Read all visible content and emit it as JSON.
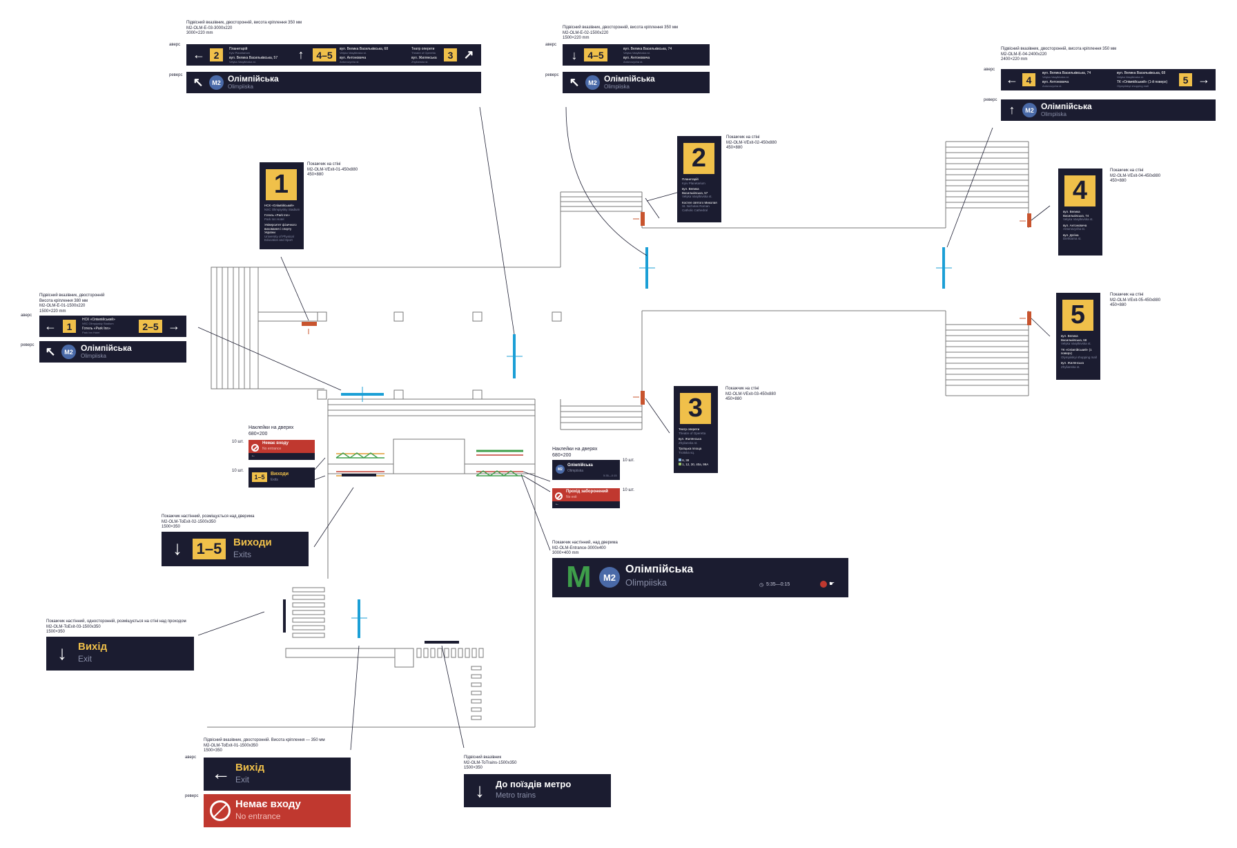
{
  "labels": {
    "avers": "аверс",
    "revers": "реверс"
  },
  "station": {
    "ua": "Олімпійська",
    "en": "Olimpiiska",
    "line": "M2"
  },
  "notes": {
    "e03": [
      "Підвісний вказівник, двосторонній, висота кріплення 350 мм",
      "M2-OLM-E-03-3000x220",
      "3000×220 mm"
    ],
    "e02": [
      "Підвісний вказівник, двосторонній, висота кріплення 350 мм",
      "M2-OLM-E-02-1500x220",
      "1500×220 mm"
    ],
    "e04": [
      "Підвісний вказівник, двосторонній, висота кріплення 350 мм",
      "M2-OLM-E-04-2400x220",
      "2400×220 mm"
    ],
    "e01": [
      "Підвісний вказівник, двосторонній",
      "Висота кріплення 380 мм",
      "M2-OLM-E-01-1500x220",
      "1500×220 mm"
    ],
    "v01": [
      "Покажчик на стіні",
      "M2-OLM-VExit-01-450x880",
      "450×880"
    ],
    "v02": [
      "Покажчик на стіні",
      "M2-OLM-VExit-02-450x880",
      "450×880"
    ],
    "v03": [
      "Покажчик на стіні",
      "M2-OLM-VExit-03-450x880",
      "450×880"
    ],
    "v04": [
      "Покажчик на стіні",
      "M2-OLM-VExit-04-450x880",
      "450×880"
    ],
    "v05": [
      "Покажчик на стіні",
      "M2-OLM-VExit-05-450x880",
      "450×880"
    ],
    "doors_left": [
      "Наклейки на дверях",
      "680×200"
    ],
    "doors_right": [
      "Наклейки на дверях",
      "680×200"
    ],
    "toexit02": [
      "Покажчик настінний, розміщується над дверима",
      "M2-OLM-ToExit-02-1500x350",
      "1500×350"
    ],
    "entrance": [
      "Покажчик настінний, над дверима",
      "M2-OLM-Entrance-3000x400",
      "3000×400 mm"
    ],
    "toexit03": [
      "Покажчик настінний, односторонній, розміщується на стіні над проходом",
      "M2-OLM-ToExit-03-1500x350",
      "1500×350"
    ],
    "toexit01": [
      "Підвісний вказівник, двосторонній. Висота кріплення — 350 мм",
      "M2-OLM-ToExit-01-1500x350",
      "1500×350"
    ],
    "totrains": [
      "Підвісний вказівник",
      "M2-OLM-ToTrains-1500x350",
      "1500×350"
    ]
  },
  "qty": {
    "a": "10 шт.",
    "b": "10 шт.",
    "c": "10 шт.",
    "d": "10 шт."
  },
  "sign_e03": {
    "a_num": "2",
    "a_l1": "Планетарій",
    "a_l1en": "Kyiv Planetarium",
    "a_l2": "вул. Велика Васильківська, 57",
    "a_l2en": "Velyka Vasylkivska st.",
    "b_num": "4–5",
    "b_l1": "вул. Велика Васильківська, 68",
    "b_l1en": "Velyka Vasylkivska st.",
    "b_l2": "вул. Антоновича",
    "b_l2en": "Antonovycha st.",
    "c_num": "3",
    "c_l1": "Театр оперети",
    "c_l1en": "Theatre of Operetta",
    "c_l2": "вул. Жилянська",
    "c_l2en": "Zhylianska st."
  },
  "sign_e02": {
    "num": "4–5",
    "l1": "вул. Велика Васильківська, 74",
    "l1en": "Velyka Vasylkivska st.",
    "l2": "вул. Антоновича",
    "l2en": "Antonovycha st."
  },
  "sign_e04": {
    "num1": "4",
    "l1": "вул. Велика Васильківська, 74",
    "l1en": "Velyka Vasylkivska st.",
    "l2": "вул. Антоновича",
    "l2en": "Antonovycha st.",
    "num2": "5",
    "r1": "вул. Велика Васильківська, 68",
    "r1en": "Velyka Vasylkivska st.",
    "r2": "ТК «Олімпійський» (1-й поверх)",
    "r2en": "Olympiiskyi shopping mall"
  },
  "sign_e01": {
    "num1": "1",
    "l1": "НСК «Олімпійський»",
    "l1en": "NSC Olimpiyskiy Stadium",
    "l2": "Готель «Park Inn»",
    "l2en": "Park Inn Hotel",
    "num2": "2–5"
  },
  "v1": {
    "num": "1",
    "items": [
      "НСК «Олімпійський»",
      "NSC Olimpiyskiy Stadium",
      "Готель «Park Inn»",
      "Park Inn Hotel",
      "Університет фізичного виховання і спорту України",
      "University of Physical Education and Sport"
    ]
  },
  "v2": {
    "num": "2",
    "items": [
      "Планетарій",
      "Kyiv Planetarium",
      "вул. Велика Васильківська, 57",
      "Velyka Vasylkivska st.",
      "Костел святого Миколая",
      "St. Nicholas Roman Catholic Cathedral"
    ]
  },
  "v3": {
    "num": "3",
    "items": [
      "Театр оперети",
      "Theatre of Operetta",
      "вул. Жилянська",
      "Zhylianska st.",
      "Троїцька площа",
      "Troitska sq."
    ],
    "bus1": "6, 38",
    "bus2": "1, 12, 30, 40а, 99А"
  },
  "v4": {
    "num": "4",
    "items": [
      "вул. Велика Васильківська, 74",
      "Velyka Vasylkivska st.",
      "вул. Антоновича",
      "Antonovycha st.",
      "вул. Дєгіна",
      "Diehtiarna st."
    ]
  },
  "v5": {
    "num": "5",
    "items": [
      "вул. Велика Васильківська, 68",
      "Velyka Vasylkivska st.",
      "ТК «Олімпійський» (1 поверх)",
      "Olympiiskyi shopping mall",
      "вул. Жилянська",
      "Zhylianska st."
    ]
  },
  "doors": {
    "no_entry_ua": "Немає входу",
    "no_entry_en": "No entrance",
    "exits_num": "1–5",
    "exits_ua": "Виходи",
    "exits_en": "Exits",
    "station_ua": "Олімпійська",
    "station_en": "Olimpiiska",
    "noexit_ua": "Прохід заборонений",
    "noexit_en": "No exit"
  },
  "toexit02": {
    "num": "1–5",
    "ua": "Виходи",
    "en": "Exits"
  },
  "toexit03": {
    "ua": "Вихід",
    "en": "Exit"
  },
  "toexit01": {
    "ua": "Вихід",
    "en": "Exit",
    "rev_ua": "Немає входу",
    "rev_en": "No entrance"
  },
  "totrains": {
    "ua": "До поїздів метро",
    "en": "Metro trains"
  },
  "entrance_sign": {
    "logo": "M",
    "ua": "Олімпійська",
    "en": "Olimpiiska",
    "hours": "5:35—0:15"
  },
  "colors": {
    "navy": "#1b1c30",
    "yellow": "#f0c04a",
    "red": "#c0382f",
    "blue": "#1b9fd6",
    "orange": "#c8542e",
    "line": "#4a6aa8",
    "green": "#3e9e4a"
  }
}
